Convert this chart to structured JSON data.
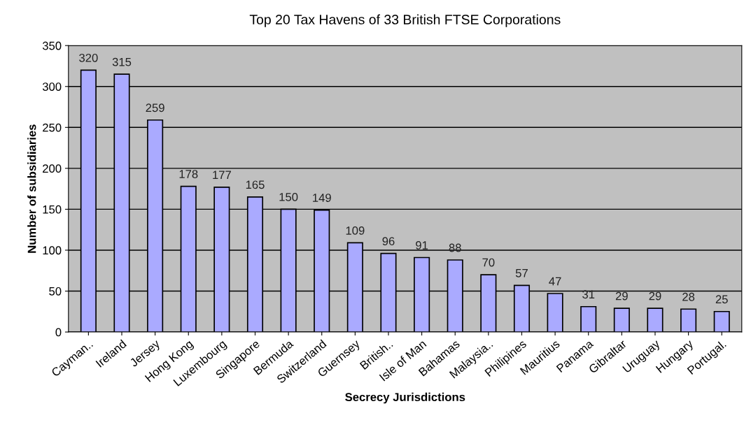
{
  "chart_data": {
    "type": "bar",
    "title": "Top 20 Tax Havens of 33 British FTSE Corporations",
    "xlabel": "Secrecy Jurisdictions",
    "ylabel": "Number of subsidiaries",
    "categories": [
      "Cayman..",
      "Ireland",
      "Jersey",
      "Hong Kong",
      "Luxembourg",
      "Singapore",
      "Bermuda",
      "Switzerland",
      "Guernsey",
      "British..",
      "Isle of Man",
      "Bahamas",
      "Malaysia..",
      "Philipines",
      "Mauritius",
      "Panama",
      "Gibraltar",
      "Uruguay",
      "Hungary",
      "Portugal."
    ],
    "values": [
      320,
      315,
      259,
      178,
      177,
      165,
      150,
      149,
      109,
      96,
      91,
      88,
      70,
      57,
      47,
      31,
      29,
      29,
      28,
      25
    ],
    "color": "#aaaaff",
    "ylim": [
      0,
      350
    ],
    "yticks": [
      0,
      50,
      100,
      150,
      200,
      250,
      300,
      350
    ],
    "grid": "y",
    "data_labels": true
  }
}
